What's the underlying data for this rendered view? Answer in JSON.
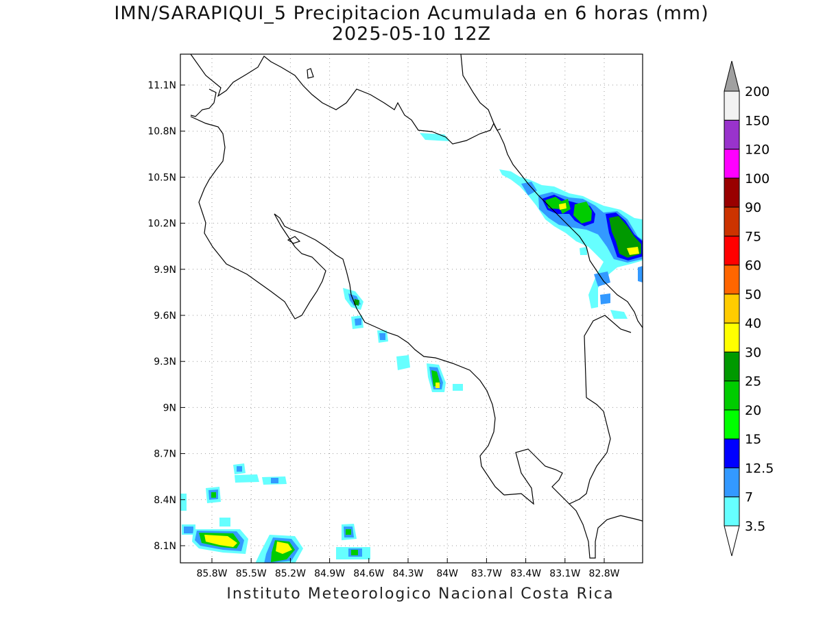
{
  "title": {
    "line1": "IMN/SARAPIQUI_5 Precipitacion Acumulada en 6 horas (mm)",
    "line2": "2025-05-10 12Z"
  },
  "footer": "Instituto Meteorologico Nacional Costa Rica",
  "axes": {
    "lon_ticks": [
      "85.8W",
      "85.5W",
      "85.2W",
      "84.9W",
      "84.6W",
      "84.3W",
      "84W",
      "83.7W",
      "83.4W",
      "83.1W",
      "82.8W"
    ],
    "lat_ticks": [
      "11.1N",
      "10.8N",
      "10.5N",
      "10.2N",
      "9.9N",
      "9.6N",
      "9.3N",
      "9N",
      "8.7N",
      "8.4N",
      "8.1N"
    ]
  },
  "colorbar": {
    "labels": [
      "3.5",
      "7",
      "12.5",
      "15",
      "20",
      "25",
      "30",
      "40",
      "50",
      "60",
      "75",
      "90",
      "100",
      "120",
      "150",
      "200"
    ],
    "colors": [
      "#66ffff",
      "#3399ff",
      "#0000ff",
      "#00ff00",
      "#00cc00",
      "#009900",
      "#ffff00",
      "#ffcc00",
      "#ff6600",
      "#ff0000",
      "#cc3300",
      "#990000",
      "#ff00ff",
      "#9933cc",
      "#f2f2f2"
    ],
    "over_color": "#a0a0a0",
    "under_color": "#ffffff"
  }
}
